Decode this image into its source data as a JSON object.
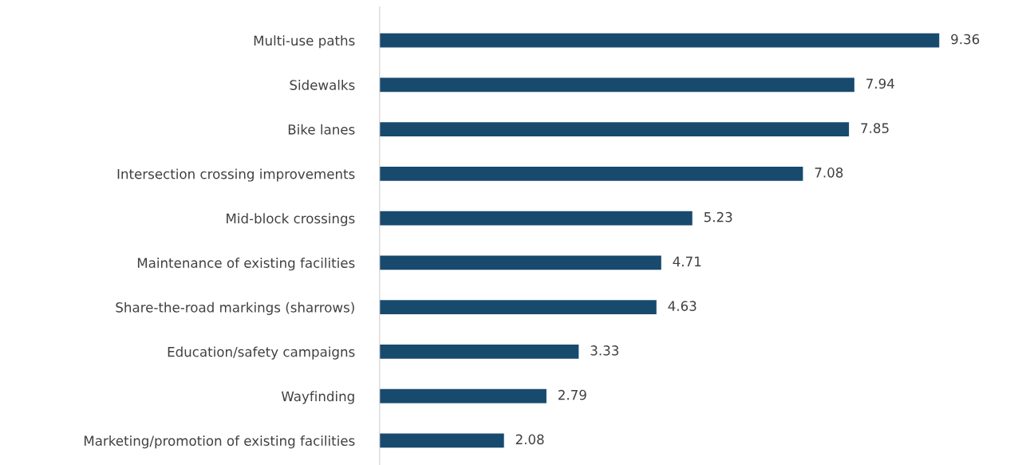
{
  "chart_data": {
    "type": "bar",
    "orientation": "horizontal",
    "categories": [
      "Multi-use paths",
      "Sidewalks",
      "Bike lanes",
      "Intersection crossing improvements",
      "Mid-block crossings",
      "Maintenance of existing facilities",
      "Share-the-road markings (sharrows)",
      "Education/safety campaigns",
      "Wayfinding",
      "Marketing/promotion of existing facilities"
    ],
    "values": [
      9.36,
      7.94,
      7.85,
      7.08,
      5.23,
      4.71,
      4.63,
      3.33,
      2.79,
      2.08
    ],
    "color": "#184a6e",
    "data_labels": true,
    "grid": false,
    "legend": false,
    "tick_labels": "y"
  }
}
